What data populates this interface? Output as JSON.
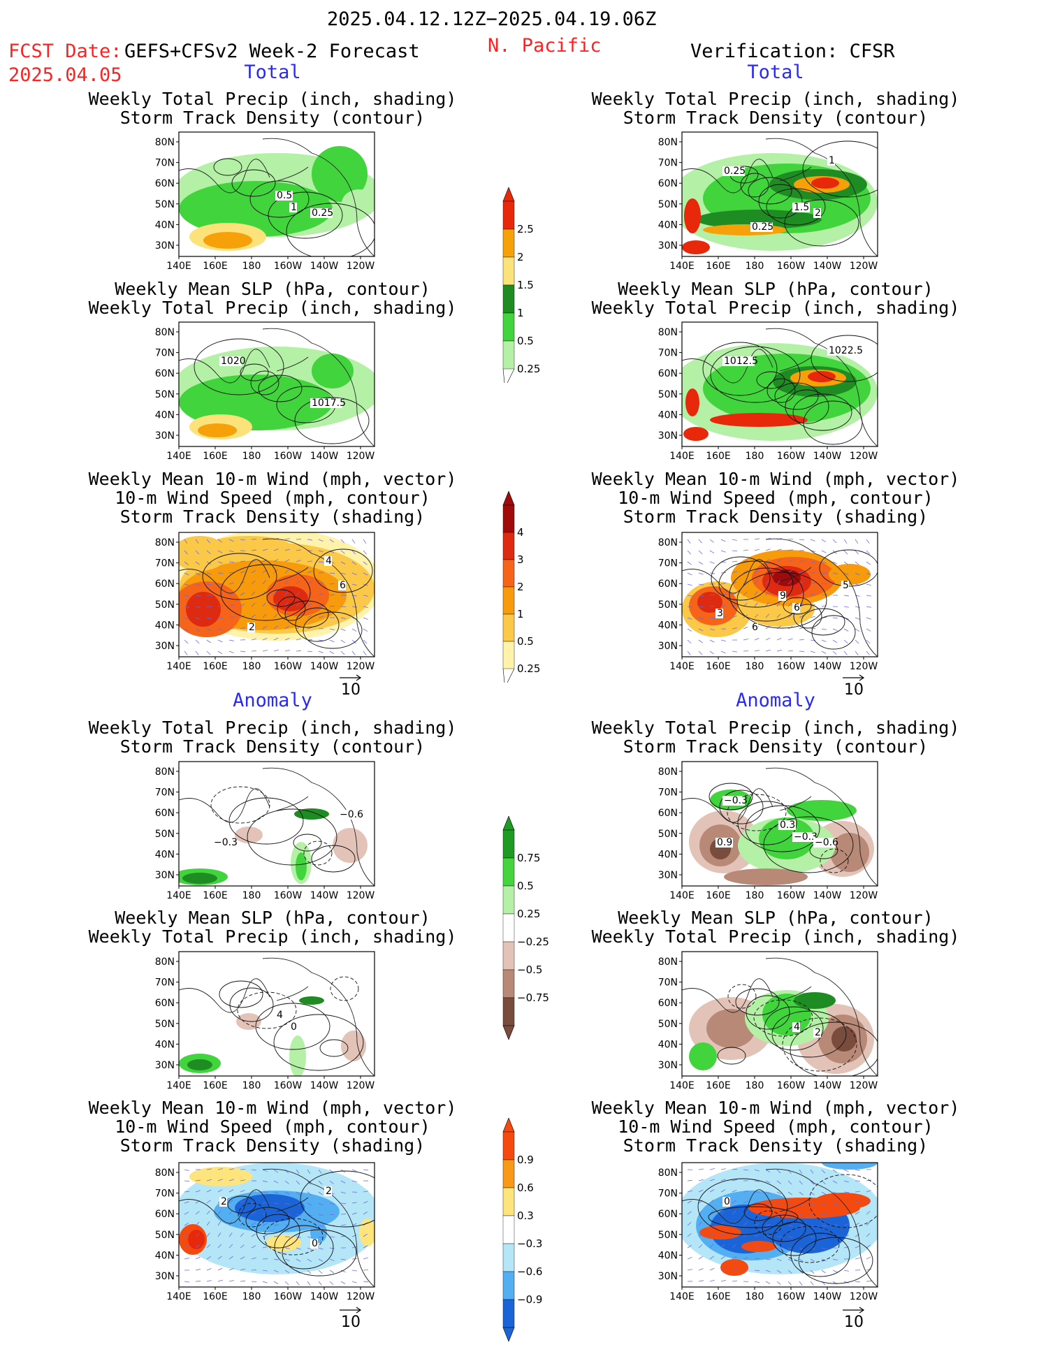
{
  "header": {
    "date_range": "2025.04.12.12Z−2025.04.19.06Z",
    "fcst_label": "FCST Date:",
    "forecast_name": "GEFS+CFSv2 Week-2 Forecast",
    "fcst_date": "2025.04.05",
    "region": "N. Pacific",
    "verification": "Verification: CFSR"
  },
  "sections": {
    "total": "Total",
    "anomaly": "Anomaly"
  },
  "panel_titles": {
    "precip_storm": [
      "Weekly Total Precip (inch, shading)",
      "Storm Track Density (contour)"
    ],
    "slp_precip": [
      "Weekly Mean SLP (hPa, contour)",
      "Weekly Total Precip (inch, shading)"
    ],
    "wind_storm": [
      "Weekly Mean 10-m Wind (mph, vector)",
      "10-m Wind Speed (mph, contour)",
      "Storm Track Density (shading)"
    ]
  },
  "axes": {
    "lat_labels": [
      "80N",
      "70N",
      "60N",
      "50N",
      "40N",
      "30N"
    ],
    "lon_labels": [
      "140E",
      "160E",
      "180",
      "160W",
      "140W",
      "120W"
    ]
  },
  "vector_ref": "10",
  "colorbars": {
    "precip_total": {
      "labels": [
        "2.5",
        "2",
        "1.5",
        "1",
        "0.5",
        "0.25"
      ],
      "colors": [
        "#e8280a",
        "#f7a10a",
        "#fbe27a",
        "#1e8c23",
        "#42d43c",
        "#b4f0a6"
      ]
    },
    "storm_total": {
      "labels": [
        "4",
        "3",
        "2",
        "1",
        "0.5",
        "0.25"
      ],
      "colors": [
        "#a00a0a",
        "#dd2a10",
        "#f56418",
        "#f79a0c",
        "#fbc847",
        "#fff2aa"
      ]
    },
    "precip_anom": {
      "labels": [
        "0.75",
        "0.5",
        "0.25",
        "−0.25",
        "−0.5",
        "−0.75"
      ],
      "colors": [
        "#1f9a24",
        "#45d43d",
        "#b4f0a6",
        "#ffffff",
        "#e3c3b7",
        "#b88977",
        "#7a4c3d"
      ]
    },
    "storm_anom": {
      "labels": [
        "0.9",
        "0.6",
        "0.3",
        "−0.3",
        "−0.6",
        "−0.9"
      ],
      "colors": [
        "#f44a10",
        "#f89a18",
        "#fde47c",
        "#ffffff",
        "#b4e6f8",
        "#53aef2",
        "#1a64d8"
      ]
    }
  },
  "contour_labels": {
    "f_ptot": [
      "0.5",
      "1",
      "0.25"
    ],
    "v_ptot": [
      "1.5",
      "2",
      "0.25",
      "1",
      "0.25"
    ],
    "f_stot": [
      "1017.5",
      "1020"
    ],
    "v_stot": [
      "1012.5",
      "1022.5"
    ],
    "f_wtot": [
      "4",
      "2",
      "6"
    ],
    "v_wtot": [
      "6",
      "5",
      "3",
      "9",
      "6"
    ],
    "f_panom": [
      "−0.6",
      "−0.3"
    ],
    "v_panom": [
      "0.9",
      "0.3",
      "−0.3",
      "−0.6",
      "−0.3"
    ],
    "f_sanom": [
      "4",
      "0"
    ],
    "v_sanom": [
      "4",
      "2"
    ],
    "f_wanom": [
      "0",
      "2",
      "2"
    ],
    "v_wanom": [
      "0"
    ]
  }
}
